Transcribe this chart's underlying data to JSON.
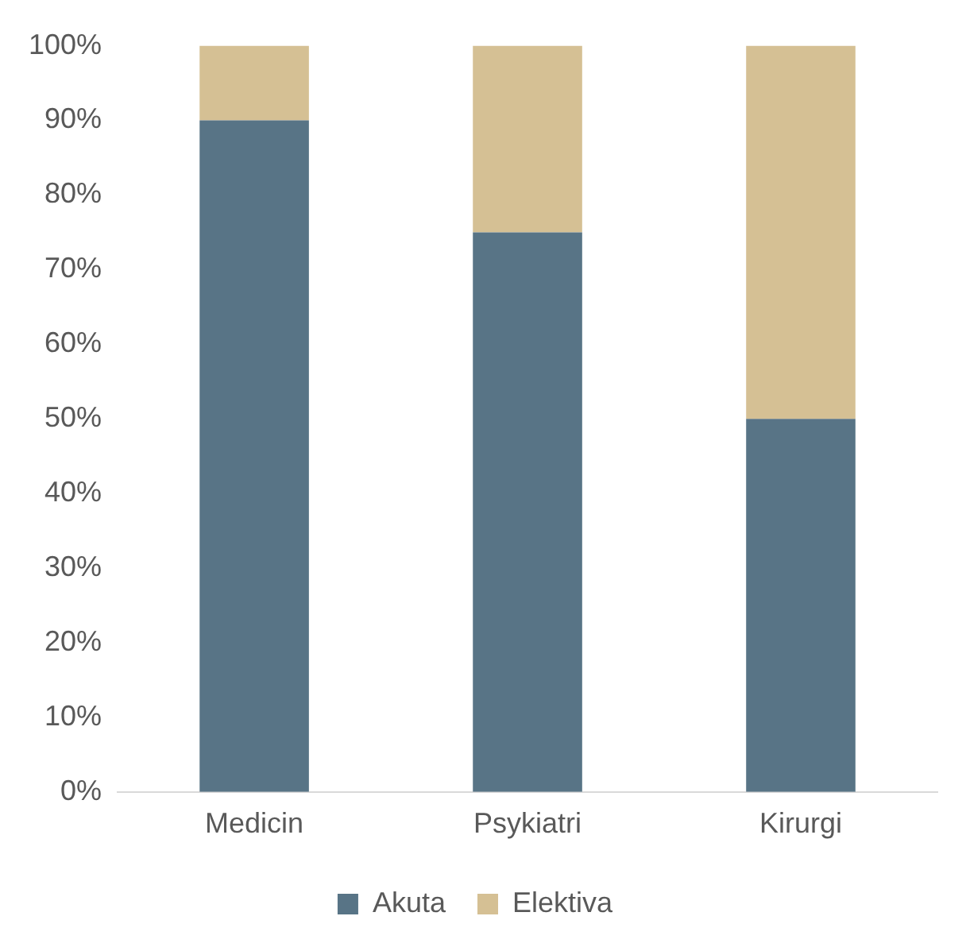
{
  "chart_data": {
    "type": "bar",
    "stacked": true,
    "categories": [
      "Medicin",
      "Psykiatri",
      "Kirurgi"
    ],
    "series": [
      {
        "name": "Akuta",
        "color": "#587486",
        "values": [
          90,
          75,
          50
        ]
      },
      {
        "name": "Elektiva",
        "color": "#d5c094",
        "values": [
          10,
          25,
          50
        ]
      }
    ],
    "ylim": [
      0,
      100
    ],
    "yticks": [
      {
        "value": 0,
        "label": "0%"
      },
      {
        "value": 10,
        "label": "10%"
      },
      {
        "value": 20,
        "label": "20%"
      },
      {
        "value": 30,
        "label": "30%"
      },
      {
        "value": 40,
        "label": "40%"
      },
      {
        "value": 50,
        "label": "50%"
      },
      {
        "value": 60,
        "label": "60%"
      },
      {
        "value": 70,
        "label": "70%"
      },
      {
        "value": 80,
        "label": "80%"
      },
      {
        "value": 90,
        "label": "90%"
      },
      {
        "value": 100,
        "label": "100%"
      }
    ],
    "grid": false,
    "legend": "bottom"
  }
}
